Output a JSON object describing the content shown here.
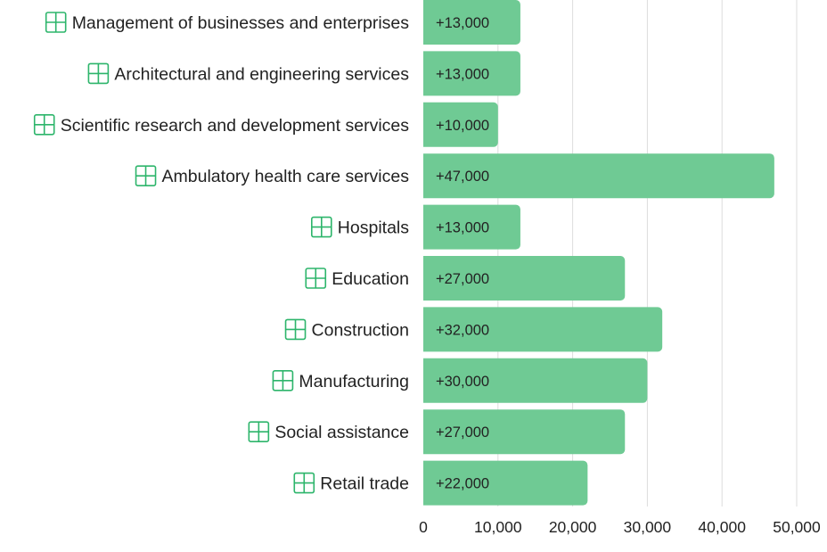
{
  "chart_data": {
    "type": "bar",
    "orientation": "horizontal",
    "categories": [
      "Management of businesses and enterprises",
      "Architectural and engineering services",
      "Scientific research and development services",
      "Ambulatory health care services",
      "Hospitals",
      "Education",
      "Construction",
      "Manufacturing",
      "Social assistance",
      "Retail trade"
    ],
    "values": [
      13000,
      13000,
      10000,
      47000,
      13000,
      27000,
      32000,
      30000,
      27000,
      22000
    ],
    "data_labels": [
      "+13,000",
      "+13,000",
      "+10,000",
      "+47,000",
      "+13,000",
      "+27,000",
      "+32,000",
      "+30,000",
      "+27,000",
      "+22,000"
    ],
    "icons": [
      "management-icon",
      "blueprint-icon",
      "grid-lab-icon",
      "health-care-icon",
      "hospital-icon",
      "school-icon",
      "construction-icon",
      "crane-icon",
      "social-assistance-icon",
      "retail-icon"
    ],
    "xlim": [
      0,
      50000
    ],
    "xticks": [
      0,
      10000,
      20000,
      30000,
      40000,
      50000
    ],
    "xtick_labels": [
      "0",
      "10,000",
      "20,000",
      "30,000",
      "40,000",
      "50,000"
    ],
    "grid": true,
    "title": "",
    "xlabel": "",
    "ylabel": "",
    "colors": {
      "bar": "#6fca94",
      "icon": "#2db56b",
      "grid": "#dddddd"
    }
  }
}
